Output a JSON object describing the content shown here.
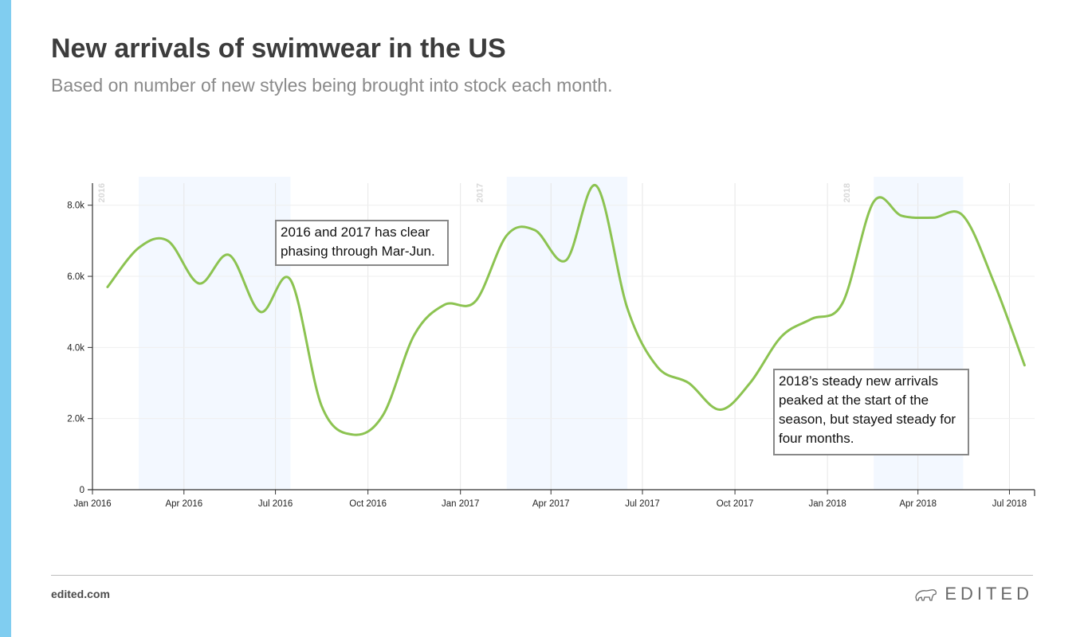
{
  "header": {
    "title": "New arrivals of swimwear in the US",
    "subtitle": "Based on number of new styles being brought into stock each month."
  },
  "annotations": {
    "phasing": "2016 and 2017 has clear\nphasing through Mar-Jun.",
    "steady": "2018’s steady new arrivals\npeaked at the start of the\nseason, but stayed steady for\nfour months."
  },
  "footer": {
    "link": "edited.com",
    "brand": "EDITED",
    "logo_icon": "polar-bear-icon"
  },
  "colors": {
    "accent": "#80cdf0",
    "line": "#8cc351",
    "shade": "#f3f8ff",
    "grid": "#e6e6e6",
    "year_label": "#d8d8d8"
  },
  "chart_data": {
    "type": "line",
    "title": "New arrivals of swimwear in the US",
    "subtitle": "Based on number of new styles being brought into stock each month.",
    "x": [
      "2016-01",
      "2016-02",
      "2016-03",
      "2016-04",
      "2016-05",
      "2016-06",
      "2016-07",
      "2016-08",
      "2016-09",
      "2016-10",
      "2016-11",
      "2016-12",
      "2017-01",
      "2017-02",
      "2017-03",
      "2017-04",
      "2017-05",
      "2017-06",
      "2017-07",
      "2017-08",
      "2017-09",
      "2017-10",
      "2017-11",
      "2017-12",
      "2018-01",
      "2018-02",
      "2018-03",
      "2018-04",
      "2018-05",
      "2018-06",
      "2018-07"
    ],
    "series": [
      {
        "values": [
          5700,
          6800,
          7000,
          5800,
          6600,
          5000,
          5900,
          2350,
          1550,
          2100,
          4350,
          5200,
          5300,
          7150,
          7300,
          6450,
          8550,
          5100,
          3450,
          3000,
          2250,
          3000,
          4300,
          4800,
          5250,
          8100,
          7700,
          7650,
          7700,
          5800,
          3500
        ]
      }
    ],
    "x_ticks": [
      "Jan 2016",
      "Apr 2016",
      "Jul 2016",
      "Oct 2016",
      "Jan 2017",
      "Apr 2017",
      "Jul 2017",
      "Oct 2017",
      "Jan 2018",
      "Apr 2018",
      "Jul 2018"
    ],
    "y_ticks": [
      "0",
      "2.0k",
      "4.0k",
      "6.0k",
      "8.0k"
    ],
    "ylim": [
      0,
      8800
    ],
    "year_labels": [
      "2016",
      "2017",
      "2018"
    ],
    "shaded_ranges": [
      [
        "2016-02-16",
        "2016-07-16"
      ],
      [
        "2017-02-16",
        "2017-06-16"
      ],
      [
        "2018-02-16",
        "2018-05-16"
      ]
    ],
    "grid": true,
    "xlabel": "",
    "ylabel": ""
  }
}
